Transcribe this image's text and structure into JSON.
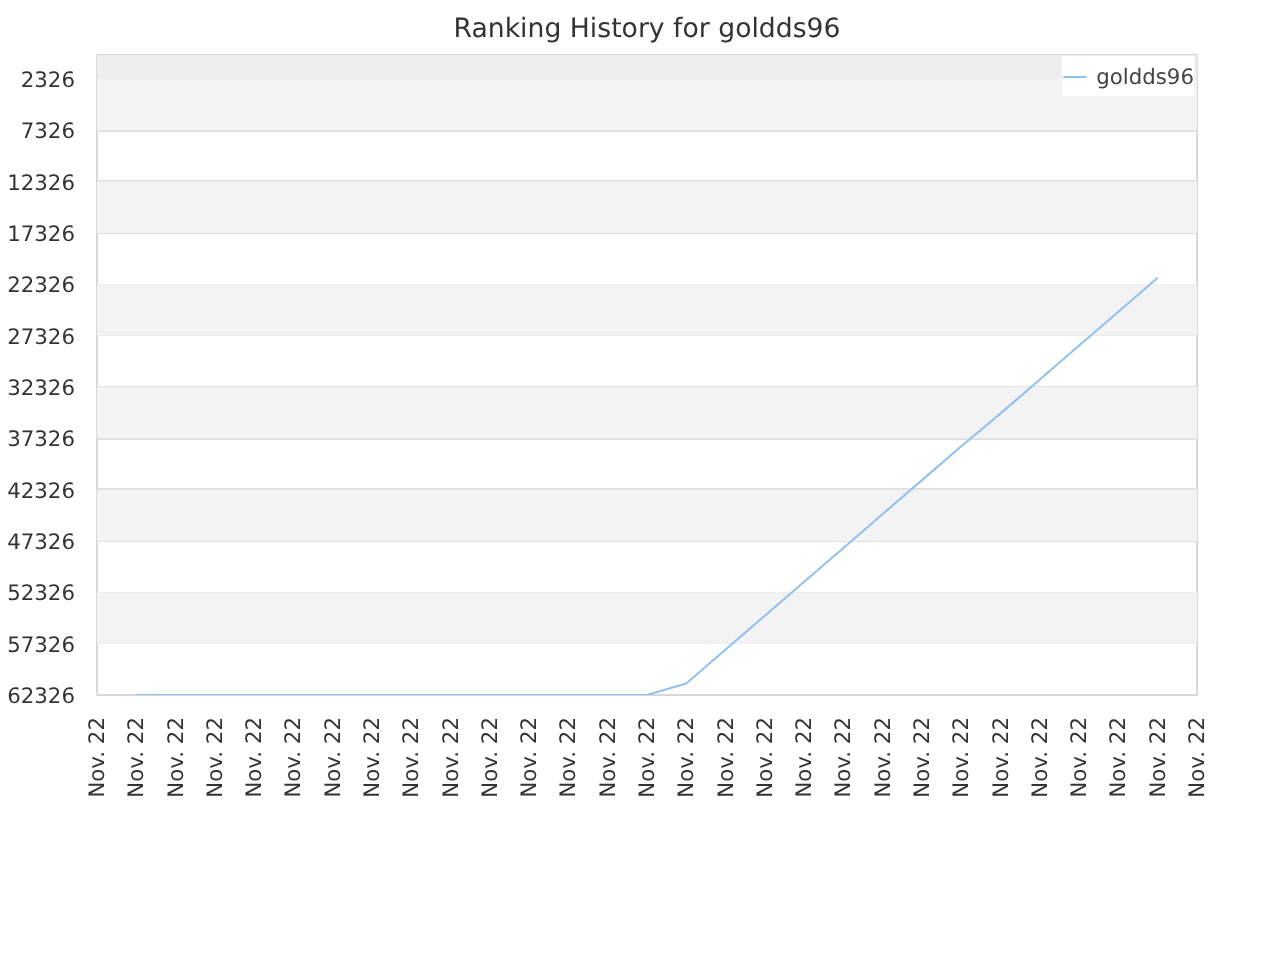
{
  "chart_data": {
    "type": "line",
    "title": "Ranking History for goldds96",
    "categories": [
      "Nov. 22",
      "Nov. 22",
      "Nov. 22",
      "Nov. 22",
      "Nov. 22",
      "Nov. 22",
      "Nov. 22",
      "Nov. 22",
      "Nov. 22",
      "Nov. 22",
      "Nov. 22",
      "Nov. 22",
      "Nov. 22",
      "Nov. 22",
      "Nov. 22",
      "Nov. 22",
      "Nov. 22",
      "Nov. 22",
      "Nov. 22",
      "Nov. 22",
      "Nov. 22",
      "Nov. 22",
      "Nov. 22",
      "Nov. 22",
      "Nov. 22",
      "Nov. 22",
      "Nov. 22",
      "Nov. 22",
      "Nov. 22"
    ],
    "series": [
      {
        "name": "goldds96",
        "color": "#90c0f0",
        "values": [
          null,
          62326,
          62326,
          62326,
          62326,
          62326,
          62326,
          62326,
          62326,
          62326,
          62326,
          62326,
          62326,
          62326,
          62326,
          61200,
          57900,
          54600,
          51300,
          48000,
          44700,
          41400,
          38100,
          34900,
          31600,
          28300,
          25000,
          21700,
          null
        ]
      }
    ],
    "ylim": [
      62326,
      0
    ],
    "yticks": [
      2326,
      7326,
      12326,
      17326,
      22326,
      27326,
      32326,
      37326,
      42326,
      47326,
      52326,
      57326,
      62326
    ],
    "bands": [
      {
        "axis": "y",
        "from": 0,
        "to": 2326,
        "color": "#eeeeee"
      },
      {
        "axis": "y",
        "from": 2326,
        "to": 7326,
        "color": "#f3f3f3"
      },
      {
        "axis": "y",
        "from": 12326,
        "to": 17326,
        "color": "#f3f3f3"
      },
      {
        "axis": "y",
        "from": 22326,
        "to": 27326,
        "color": "#f3f3f3"
      },
      {
        "axis": "y",
        "from": 32326,
        "to": 37326,
        "color": "#f3f3f3"
      },
      {
        "axis": "y",
        "from": 42326,
        "to": 47326,
        "color": "#f3f3f3"
      },
      {
        "axis": "y",
        "from": 52326,
        "to": 57326,
        "color": "#f3f3f3"
      }
    ],
    "grid": "y",
    "legend": "top right",
    "marker": "none",
    "line_style": "solid"
  }
}
